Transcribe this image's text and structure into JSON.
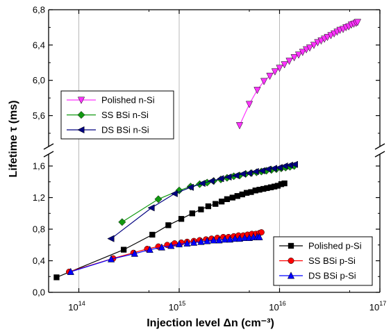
{
  "chart_data": {
    "type": "scatter",
    "xlabel": "Injection level Δn (cm⁻³)",
    "ylabel": "Lifetime τ (ms)",
    "x_scale": "log",
    "xlim": [
      50000000000000.0,
      1e+17
    ],
    "x_ticks": [
      {
        "value": 100000000000000.0,
        "base": "10",
        "exp": "14"
      },
      {
        "value": 1000000000000000.0,
        "base": "10",
        "exp": "15"
      },
      {
        "value": 1e+16,
        "base": "10",
        "exp": "16"
      },
      {
        "value": 1e+17,
        "base": "10",
        "exp": "17"
      }
    ],
    "y_axis_broken": true,
    "y_lower_range": [
      0.0,
      1.75
    ],
    "y_upper_range": [
      5.25,
      6.8
    ],
    "y_ticks_lower": [
      "0,0",
      "0,4",
      "0,8",
      "1,2",
      "1,6"
    ],
    "y_ticks_lower_values": [
      0.0,
      0.4,
      0.8,
      1.2,
      1.6
    ],
    "y_ticks_upper": [
      "5,6",
      "6,0",
      "6,4",
      "6,8"
    ],
    "y_ticks_upper_values": [
      5.6,
      6.0,
      6.4,
      6.8
    ],
    "grid": "vertical lines at decades",
    "legend_upper": {
      "placement": "upper-left",
      "entries": [
        "Polished n-Si",
        "SS BSi n-Si",
        "DS BSi n-Si"
      ]
    },
    "legend_lower": {
      "placement": "lower-right",
      "entries": [
        "Polished p-Si",
        "SS BSi p-Si",
        "DS BSi p-Si"
      ]
    },
    "series": [
      {
        "name": "Polished n-Si",
        "color": "#ff33ff",
        "marker": "triangle-down",
        "x": [
          4000000000000000.0,
          5000000000000000.0,
          6000000000000000.0,
          7000000000000000.0,
          8000000000000000.0,
          9000000000000000.0,
          1e+16,
          1.12e+16,
          1.25e+16,
          1.4e+16,
          1.55e+16,
          1.7e+16,
          1.85e+16,
          2e+16,
          2.2e+16,
          2.4e+16,
          2.6e+16,
          2.8e+16,
          3e+16,
          3.25e+16,
          3.5e+16,
          3.75e+16,
          4e+16,
          4.3e+16,
          4.6e+16,
          4.9e+16,
          5.2e+16,
          5.5e+16,
          5.8e+16,
          6e+16
        ],
        "y": [
          5.49,
          5.73,
          5.89,
          5.99,
          6.05,
          6.1,
          6.14,
          6.18,
          6.22,
          6.26,
          6.29,
          6.32,
          6.35,
          6.37,
          6.4,
          6.43,
          6.45,
          6.47,
          6.49,
          6.51,
          6.53,
          6.55,
          6.57,
          6.58,
          6.6,
          6.61,
          6.63,
          6.64,
          6.65,
          6.66
        ]
      },
      {
        "name": "SS BSi n-Si",
        "color": "#119911",
        "marker": "diamond",
        "x": [
          270000000000000.0,
          620000000000000.0,
          1000000000000000.0,
          1300000000000000.0,
          1600000000000000.0,
          1900000000000000.0,
          2200000000000000.0,
          2600000000000000.0,
          3000000000000000.0,
          3500000000000000.0,
          4000000000000000.0,
          4600000000000000.0,
          5200000000000000.0,
          5900000000000000.0,
          6600000000000000.0,
          7400000000000000.0,
          8300000000000000.0,
          9300000000000000.0,
          1.04e+16,
          1.15e+16,
          1.27e+16,
          1.4e+16
        ],
        "y": [
          0.89,
          1.18,
          1.29,
          1.34,
          1.37,
          1.39,
          1.41,
          1.43,
          1.45,
          1.47,
          1.48,
          1.5,
          1.51,
          1.52,
          1.53,
          1.54,
          1.55,
          1.56,
          1.57,
          1.58,
          1.59,
          1.6
        ]
      },
      {
        "name": "DS BSi n-Si",
        "color": "#000080",
        "marker": "triangle-left",
        "x": [
          210000000000000.0,
          530000000000000.0,
          900000000000000.0,
          1300000000000000.0,
          1700000000000000.0,
          2100000000000000.0,
          2600000000000000.0,
          3100000000000000.0,
          3700000000000000.0,
          4300000000000000.0,
          5000000000000000.0,
          5800000000000000.0,
          6700000000000000.0,
          7700000000000000.0,
          8800000000000000.0,
          1e+16,
          1.13e+16,
          1.27e+16,
          1.42e+16
        ],
        "y": [
          0.68,
          1.07,
          1.25,
          1.33,
          1.38,
          1.41,
          1.44,
          1.46,
          1.48,
          1.5,
          1.51,
          1.53,
          1.54,
          1.56,
          1.57,
          1.58,
          1.6,
          1.61,
          1.62
        ]
      },
      {
        "name": "Polished p-Si",
        "color": "#000000",
        "marker": "square",
        "x": [
          60000000000000.0,
          280000000000000.0,
          540000000000000.0,
          780000000000000.0,
          1050000000000000.0,
          1350000000000000.0,
          1650000000000000.0,
          1950000000000000.0,
          2300000000000000.0,
          2650000000000000.0,
          3000000000000000.0,
          3400000000000000.0,
          3800000000000000.0,
          4250000000000000.0,
          4700000000000000.0,
          5200000000000000.0,
          5750000000000000.0,
          6300000000000000.0,
          6900000000000000.0,
          7500000000000000.0,
          8200000000000000.0,
          8900000000000000.0,
          9600000000000000.0,
          1.04e+16,
          1.12e+16
        ],
        "y": [
          0.19,
          0.54,
          0.73,
          0.85,
          0.93,
          1.0,
          1.05,
          1.09,
          1.12,
          1.15,
          1.18,
          1.2,
          1.22,
          1.24,
          1.26,
          1.27,
          1.29,
          1.3,
          1.31,
          1.32,
          1.33,
          1.34,
          1.35,
          1.37,
          1.38
        ]
      },
      {
        "name": "SS BSi p-Si",
        "color": "#ff0000",
        "marker": "circle",
        "x": [
          80000000000000.0,
          220000000000000.0,
          350000000000000.0,
          480000000000000.0,
          620000000000000.0,
          760000000000000.0,
          900000000000000.0,
          1050000000000000.0,
          1200000000000000.0,
          1400000000000000.0,
          1600000000000000.0,
          1850000000000000.0,
          2100000000000000.0,
          2400000000000000.0,
          2750000000000000.0,
          3100000000000000.0,
          3500000000000000.0,
          3900000000000000.0,
          4350000000000000.0,
          4800000000000000.0,
          5300000000000000.0,
          5800000000000000.0,
          6300000000000000.0,
          6600000000000000.0
        ],
        "y": [
          0.26,
          0.43,
          0.5,
          0.55,
          0.58,
          0.6,
          0.62,
          0.63,
          0.64,
          0.65,
          0.66,
          0.67,
          0.68,
          0.69,
          0.7,
          0.7,
          0.71,
          0.72,
          0.72,
          0.73,
          0.74,
          0.74,
          0.75,
          0.76
        ]
      },
      {
        "name": "DS BSi p-Si",
        "color": "#0000ff",
        "marker": "triangle-up",
        "x": [
          83000000000000.0,
          210000000000000.0,
          360000000000000.0,
          510000000000000.0,
          670000000000000.0,
          830000000000000.0,
          1000000000000000.0,
          1200000000000000.0,
          1400000000000000.0,
          1650000000000000.0,
          1900000000000000.0,
          2200000000000000.0,
          2500000000000000.0,
          2850000000000000.0,
          3200000000000000.0,
          3600000000000000.0,
          4000000000000000.0,
          4500000000000000.0,
          5000000000000000.0,
          5500000000000000.0,
          6000000000000000.0,
          6300000000000000.0
        ],
        "y": [
          0.26,
          0.42,
          0.49,
          0.54,
          0.57,
          0.59,
          0.61,
          0.62,
          0.63,
          0.64,
          0.65,
          0.66,
          0.66,
          0.67,
          0.67,
          0.68,
          0.68,
          0.69,
          0.69,
          0.7,
          0.7,
          0.7
        ]
      }
    ]
  }
}
